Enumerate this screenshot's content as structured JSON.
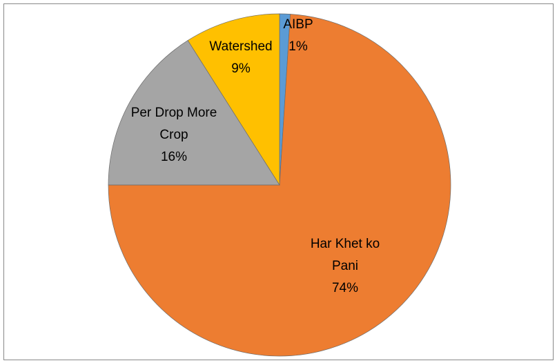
{
  "chart_data": {
    "type": "pie",
    "categories": [
      "AIBP",
      "Har Khet ko Pani",
      "Per Drop More Crop",
      "Watershed"
    ],
    "values": [
      1,
      74,
      16,
      9
    ],
    "value_labels": [
      "1%",
      "74%",
      "16%",
      "9%"
    ],
    "colors": [
      "#5b9bd5",
      "#ed7d31",
      "#a5a5a5",
      "#ffc000"
    ]
  }
}
